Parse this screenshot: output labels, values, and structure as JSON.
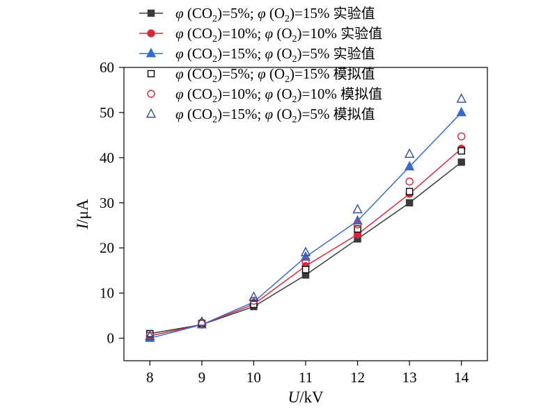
{
  "chart_data": {
    "type": "line",
    "x": [
      8,
      9,
      10,
      11,
      12,
      13,
      14
    ],
    "xlim": [
      7.5,
      14.5
    ],
    "ylim": [
      -5,
      60
    ],
    "xticks": [
      8,
      9,
      10,
      11,
      12,
      13,
      14
    ],
    "yticks": [
      0,
      10,
      20,
      30,
      40,
      50,
      60
    ],
    "xlabel": {
      "var": "U",
      "unit": "/kV"
    },
    "ylabel": {
      "var": "I",
      "unit": "/μA"
    },
    "grid": false,
    "legend_position": "top-center",
    "series": [
      {
        "name": "φ (CO2)=5%; φ (O2)=15% 实验值",
        "co2": "5%",
        "o2": "15%",
        "suffix": "实验值",
        "kind": "experiment",
        "marker": "filled-square",
        "color": "#3a3a3a",
        "values": [
          1,
          3,
          7,
          14,
          22,
          30,
          39
        ]
      },
      {
        "name": "φ (CO2)=10%; φ (O2)=10% 实验值",
        "co2": "10%",
        "o2": "10%",
        "suffix": "实验值",
        "kind": "experiment",
        "marker": "filled-circle",
        "color": "#d42a3a",
        "values": [
          0.5,
          3,
          7.5,
          16,
          23,
          32,
          42
        ]
      },
      {
        "name": "φ (CO2)=15%; φ (O2)=5% 实验值",
        "co2": "15%",
        "o2": "5%",
        "suffix": "实验值",
        "kind": "experiment",
        "marker": "filled-triangle",
        "color": "#3a6bc8",
        "values": [
          0,
          3,
          8,
          18,
          26,
          38,
          50
        ]
      },
      {
        "name": "φ (CO2)=5%; φ (O2)=15% 模拟值",
        "co2": "5%",
        "o2": "15%",
        "suffix": "模拟值",
        "kind": "simulation",
        "marker": "open-square",
        "color": "#000000",
        "values": [
          1,
          3.3,
          7.5,
          15.2,
          24.2,
          32.5,
          41.5
        ]
      },
      {
        "name": "φ (CO2)=10%; φ (O2)=10% 模拟值",
        "co2": "10%",
        "o2": "10%",
        "suffix": "模拟值",
        "kind": "simulation",
        "marker": "open-circle",
        "color": "#d42a3a",
        "values": [
          0.6,
          3.4,
          8.3,
          16.8,
          25.2,
          34.7,
          44.7
        ]
      },
      {
        "name": "φ (CO2)=15%; φ (O2)=5% 模拟值",
        "co2": "15%",
        "o2": "5%",
        "suffix": "模拟值",
        "kind": "simulation",
        "marker": "open-triangle",
        "color": "#2f4e9a",
        "values": [
          0.4,
          3.6,
          9.1,
          19,
          28.5,
          40.8,
          53
        ]
      }
    ]
  }
}
